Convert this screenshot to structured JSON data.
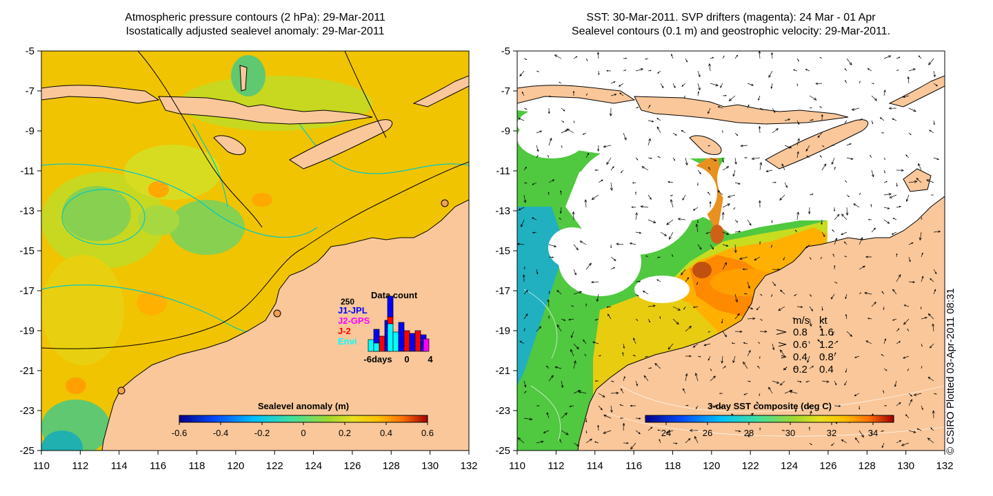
{
  "left_panel": {
    "title_line1": "Atmospheric pressure contours (2 hPa): 29-Mar-2011",
    "title_line2": "Isostatically adjusted sealevel anomaly: 29-Mar-2011",
    "colorbar": {
      "label": "Sealevel anomaly (m)",
      "ticks": [
        "-0.6",
        "-0.4",
        "-0.2",
        "0",
        "0.2",
        "0.4",
        "0.6"
      ],
      "range": [
        -0.6,
        0.6
      ],
      "colors": [
        "#00008b",
        "#0050ff",
        "#00c0ff",
        "#40e0a0",
        "#80d040",
        "#d8e020",
        "#ffc000",
        "#ff7000",
        "#a00000"
      ]
    },
    "inset": {
      "title": "Data count",
      "y_max_label": "250",
      "x_labels": [
        "-6days",
        "0",
        "4"
      ],
      "legend": [
        {
          "label": "J1-JPL",
          "color": "#0000ff"
        },
        {
          "label": "J2-GPS",
          "color": "#ff00ff"
        },
        {
          "label": "J-2",
          "color": "#ff0000"
        },
        {
          "label": "Envi",
          "color": "#00ffff"
        }
      ]
    }
  },
  "right_panel": {
    "title_line1": "SST: 30-Mar-2011. SVP drifters (magenta): 24 Mar - 01 Apr",
    "title_line2": "Sealevel contours (0.1 m) and geostrophic velocity: 29-Mar-2011.",
    "colorbar": {
      "label": "3-day SST composite (deg C)",
      "ticks": [
        "24",
        "26",
        "28",
        "30",
        "32",
        "34"
      ],
      "range": [
        23,
        35
      ],
      "colors": [
        "#00008b",
        "#0050ff",
        "#00c0ff",
        "#40e0a0",
        "#80d040",
        "#d8e020",
        "#ffc000",
        "#ff7000",
        "#a00000"
      ]
    },
    "velocity_legend": {
      "header_ms": "m/s",
      "header_kt": "kt",
      "rows": [
        {
          "ms": "0.8",
          "kt": "1.6"
        },
        {
          "ms": "0.6",
          "kt": "1.2"
        },
        {
          "ms": "0.4",
          "kt": "0.8"
        },
        {
          "ms": "0.2",
          "kt": "0.4"
        }
      ]
    }
  },
  "axes": {
    "lon_ticks": [
      "110",
      "112",
      "114",
      "116",
      "118",
      "120",
      "122",
      "124",
      "126",
      "128",
      "130",
      "132"
    ],
    "lat_ticks": [
      "-5",
      "-7",
      "-9",
      "-11",
      "-13",
      "-15",
      "-17",
      "-19",
      "-21",
      "-23",
      "-25"
    ]
  },
  "credit": "© CSIRO Plotted 03-Apr-2011 08:31",
  "colors": {
    "land": "#f9c79a",
    "ocean_base": "#ffc000",
    "contour": "#00c8c8"
  }
}
